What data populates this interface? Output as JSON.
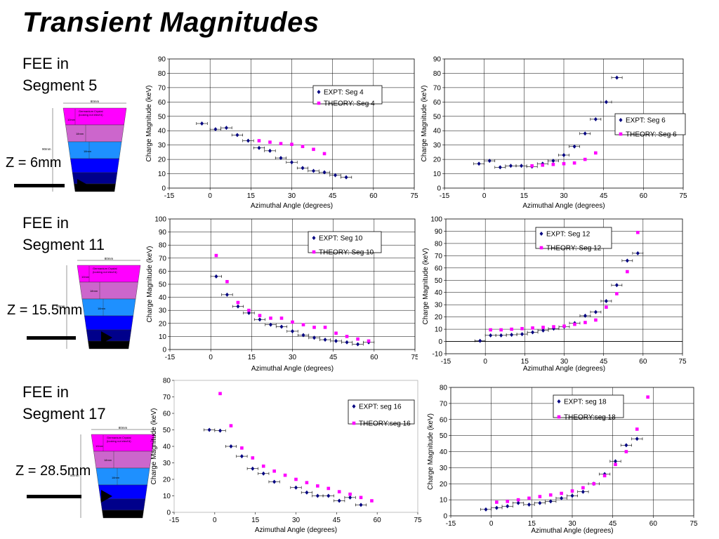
{
  "title": "Transient Magnitudes",
  "rows": [
    {
      "label_line1": "FEE in",
      "label_line2": "Segment 5",
      "z_label": "Z = 6mm"
    },
    {
      "label_line1": "FEE in",
      "label_line2": "Segment 11",
      "z_label": "Z = 15.5mm"
    },
    {
      "label_line1": "FEE in",
      "label_line2": "Segment 17",
      "z_label": "Z = 28.5mm"
    }
  ],
  "crystal": {
    "top_width_label": "80mm",
    "height_label": "90mm",
    "top_text_1": "Germanium Crystal",
    "top_text_2": "(looking not elect'd)",
    "dim_label_1": "10mm",
    "dim_label_2": "18mm",
    "dim_label_3": "18mm",
    "layer_colors": [
      "#ff00ff",
      "#cc66cc",
      "#1e90ff",
      "#0000ff",
      "#00008b",
      "#000000"
    ]
  },
  "chart_data": [
    {
      "type": "scatter",
      "ylabel": "Charge Magnitude (keV)",
      "xlabel": "Azimuthal Angle (degrees)",
      "xlim": [
        -15,
        75
      ],
      "ylim": [
        0,
        90
      ],
      "xticks": [
        -15,
        0,
        15,
        30,
        45,
        60,
        75
      ],
      "ystep": 10,
      "grid": "vertical+horizontal",
      "legend_position": "top-right",
      "series": [
        {
          "name": "EXPT: Seg 4",
          "marker": "diamond",
          "color": "#000080",
          "errorbars": true,
          "x": [
            -3,
            2,
            6,
            10,
            14,
            18,
            22,
            26,
            30,
            34,
            38,
            42,
            46,
            50
          ],
          "y": [
            45,
            41,
            42,
            37,
            33,
            28,
            26,
            21,
            18,
            14,
            12,
            11,
            9,
            7.5
          ]
        },
        {
          "name": "THEORY: Seg 4",
          "marker": "square",
          "color": "#ff00ff",
          "x": [
            18,
            22,
            26,
            30,
            34,
            38,
            42
          ],
          "y": [
            33,
            32,
            31,
            30.5,
            29,
            27,
            24
          ]
        }
      ]
    },
    {
      "type": "scatter",
      "ylabel": "Charge Magnitude (keV)",
      "xlabel": "Azimuthal Angle (degrees)",
      "xlim": [
        -15,
        75
      ],
      "ylim": [
        0,
        90
      ],
      "xticks": [
        -15,
        0,
        15,
        30,
        45,
        60,
        75
      ],
      "ystep": 10,
      "grid": "vertical+horizontal",
      "legend_position": "right",
      "series": [
        {
          "name": "EXPT: Seg 6",
          "marker": "diamond",
          "color": "#000080",
          "errorbars": true,
          "x": [
            -2,
            2,
            6,
            10,
            14,
            18,
            22,
            26,
            30,
            34,
            38,
            42,
            46,
            50
          ],
          "y": [
            17,
            19,
            14.5,
            15.5,
            15.5,
            15,
            17,
            19,
            23,
            29,
            38,
            48,
            60,
            77
          ]
        },
        {
          "name": "THEORY: Seg 6",
          "marker": "square",
          "color": "#ff00ff",
          "x": [
            18,
            22,
            26,
            30,
            34,
            38,
            42
          ],
          "y": [
            15.5,
            16,
            16.5,
            17,
            17.5,
            20,
            24.5
          ]
        }
      ]
    },
    {
      "type": "scatter",
      "ylabel": "Charge Magnitude (keV)",
      "xlabel": "Azimuthal Angle (degrees)",
      "xlim": [
        -15,
        75
      ],
      "ylim": [
        0,
        100
      ],
      "xticks": [
        -15,
        0,
        15,
        30,
        45,
        60,
        75
      ],
      "ystep": 10,
      "grid": "vertical+horizontal",
      "legend_position": "top-right",
      "series": [
        {
          "name": "EXPT: Seg 10",
          "marker": "diamond",
          "color": "#000080",
          "errorbars": true,
          "x": [
            2,
            6,
            10,
            14,
            18,
            22,
            26,
            30,
            34,
            38,
            42,
            46,
            50,
            54,
            58
          ],
          "y": [
            56,
            42,
            33,
            28,
            23,
            19,
            17.5,
            14,
            11,
            9,
            7.5,
            6.5,
            5.5,
            4,
            5.5
          ]
        },
        {
          "name": "THEORY: Seg 10",
          "marker": "square",
          "color": "#ff00ff",
          "x": [
            2,
            6,
            10,
            14,
            18,
            22,
            26,
            30,
            34,
            38,
            42,
            46,
            50,
            54,
            58
          ],
          "y": [
            72,
            52,
            36,
            30,
            26,
            24,
            24,
            21,
            19,
            17,
            17,
            12.5,
            10,
            8,
            6.5
          ]
        }
      ]
    },
    {
      "type": "scatter",
      "ylabel": "Charge Magnitude (keV)",
      "xlabel": "Azimuthal Angle (degrees)",
      "xlim": [
        -15,
        75
      ],
      "ylim": [
        -10,
        100
      ],
      "xticks": [
        -15,
        0,
        15,
        30,
        45,
        60,
        75
      ],
      "ystep": 10,
      "grid": "vertical+horizontal",
      "legend_position": "top-right",
      "series": [
        {
          "name": "EXPT: Seg 12",
          "marker": "diamond",
          "color": "#000080",
          "errorbars": true,
          "x": [
            -2,
            2,
            6,
            10,
            14,
            18,
            22,
            26,
            30,
            34,
            38,
            42,
            46,
            50,
            54,
            58
          ],
          "y": [
            0.5,
            5,
            5,
            5.5,
            6,
            7.5,
            9,
            10.5,
            12,
            15,
            21,
            24,
            33,
            46,
            66,
            72
          ]
        },
        {
          "name": "THEORY: Seg 12",
          "marker": "square",
          "color": "#ff00ff",
          "x": [
            2,
            6,
            10,
            14,
            18,
            22,
            26,
            30,
            34,
            38,
            42,
            46,
            50,
            54,
            58
          ],
          "y": [
            9.5,
            9.5,
            10,
            10.5,
            11,
            11.5,
            12,
            12.5,
            14,
            15.5,
            17.5,
            28,
            39,
            57,
            89
          ]
        }
      ]
    },
    {
      "type": "scatter",
      "ylabel": "Charge Magnitude (keV)",
      "xlabel": "Azimuthal Angle (degrees)",
      "xlim": [
        -15,
        75
      ],
      "ylim": [
        0,
        80
      ],
      "xticks": [
        -15,
        0,
        15,
        30,
        45,
        60,
        75
      ],
      "ystep": 10,
      "grid": "none",
      "legend_position": "right",
      "series": [
        {
          "name": "EXPT: seg 16",
          "marker": "diamond",
          "color": "#000080",
          "errorbars": true,
          "x": [
            -2,
            2,
            6,
            10,
            14,
            18,
            22,
            30,
            34,
            38,
            42,
            46,
            50,
            54
          ],
          "y": [
            50,
            49.5,
            40,
            34,
            26.5,
            23.5,
            18.5,
            15,
            12,
            10,
            10,
            7,
            9,
            4.5
          ]
        },
        {
          "name": "THEORY:seg 16",
          "marker": "square",
          "color": "#ff00ff",
          "x": [
            2,
            6,
            10,
            14,
            18,
            22,
            26,
            30,
            34,
            38,
            42,
            46,
            50,
            54,
            58
          ],
          "y": [
            72,
            52.5,
            39,
            33,
            28,
            25,
            22.5,
            20,
            18,
            16,
            14.5,
            12.5,
            11,
            9,
            7
          ]
        }
      ]
    },
    {
      "type": "scatter",
      "ylabel": "Charge Magnitude (keV)",
      "xlabel": "Azimuthal Angle (degrees)",
      "xlim": [
        -15,
        75
      ],
      "ylim": [
        0,
        80
      ],
      "xticks": [
        -15,
        0,
        15,
        30,
        45,
        60,
        75
      ],
      "ystep": 10,
      "grid": "vertical+horizontal",
      "legend_position": "top-right",
      "series": [
        {
          "name": "EXPT: seg 18",
          "marker": "diamond",
          "color": "#000080",
          "errorbars": true,
          "x": [
            -2,
            2,
            6,
            10,
            14,
            18,
            22,
            26,
            30,
            34,
            38,
            42,
            46,
            50,
            54
          ],
          "y": [
            4,
            5,
            6,
            8,
            7,
            8,
            9,
            11,
            12.5,
            15,
            20,
            26,
            34,
            44,
            48
          ]
        },
        {
          "name": "THEORY:seg 18",
          "marker": "square",
          "color": "#ff00ff",
          "x": [
            2,
            6,
            10,
            14,
            18,
            22,
            26,
            30,
            34,
            38,
            42,
            46,
            50,
            54,
            58
          ],
          "y": [
            8.5,
            9,
            10,
            11,
            12,
            13,
            14,
            15.5,
            17.5,
            20,
            25,
            32,
            40,
            54,
            74
          ]
        }
      ]
    }
  ]
}
